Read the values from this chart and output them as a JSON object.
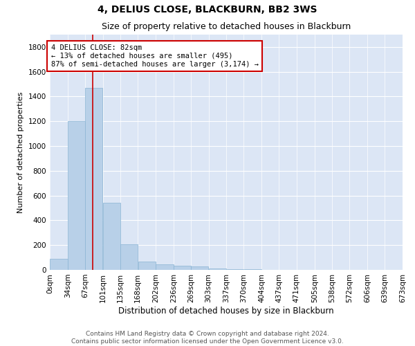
{
  "title": "4, DELIUS CLOSE, BLACKBURN, BB2 3WS",
  "subtitle": "Size of property relative to detached houses in Blackburn",
  "xlabel": "Distribution of detached houses by size in Blackburn",
  "ylabel": "Number of detached properties",
  "bar_color": "#b8d0e8",
  "bar_edge_color": "#8ab4d4",
  "background_color": "#dce6f5",
  "grid_color": "#ffffff",
  "annotation_box_color": "#cc0000",
  "annotation_text": "4 DELIUS CLOSE: 82sqm\n← 13% of detached houses are smaller (495)\n87% of semi-detached houses are larger (3,174) →",
  "property_size": 82,
  "vline_x": 82,
  "vline_color": "#cc0000",
  "bin_edges": [
    0,
    34,
    67,
    101,
    135,
    168,
    202,
    236,
    269,
    303,
    337,
    370,
    404,
    437,
    471,
    505,
    538,
    572,
    606,
    639,
    673
  ],
  "bin_labels": [
    "0sqm",
    "34sqm",
    "67sqm",
    "101sqm",
    "135sqm",
    "168sqm",
    "202sqm",
    "236sqm",
    "269sqm",
    "303sqm",
    "337sqm",
    "370sqm",
    "404sqm",
    "437sqm",
    "471sqm",
    "505sqm",
    "538sqm",
    "572sqm",
    "606sqm",
    "639sqm",
    "673sqm"
  ],
  "bar_heights": [
    90,
    1200,
    1470,
    540,
    205,
    65,
    45,
    35,
    30,
    10,
    5,
    3,
    2,
    1,
    1,
    0,
    0,
    0,
    0,
    0
  ],
  "ylim": [
    0,
    1900
  ],
  "yticks": [
    0,
    200,
    400,
    600,
    800,
    1000,
    1200,
    1400,
    1600,
    1800
  ],
  "footer_text": "Contains HM Land Registry data © Crown copyright and database right 2024.\nContains public sector information licensed under the Open Government Licence v3.0.",
  "title_fontsize": 10,
  "subtitle_fontsize": 9,
  "xlabel_fontsize": 8.5,
  "ylabel_fontsize": 8,
  "tick_fontsize": 7.5,
  "annotation_fontsize": 7.5,
  "footer_fontsize": 6.5
}
